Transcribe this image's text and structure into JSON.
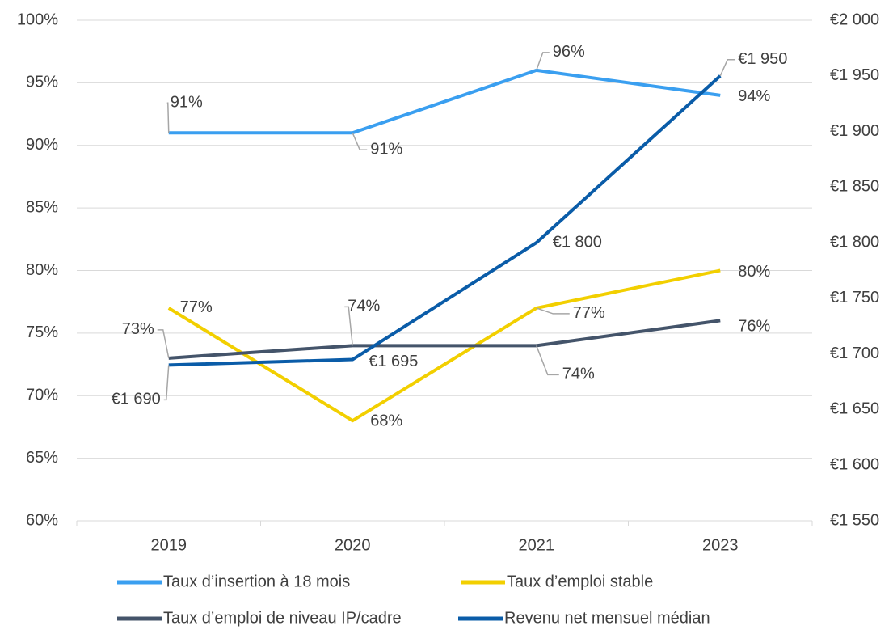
{
  "chart_data": {
    "type": "line",
    "categories": [
      "2019",
      "2020",
      "2021",
      "2023"
    ],
    "ylim": [
      60,
      100
    ],
    "yticks": [
      {
        "value": 60,
        "label": "60%"
      },
      {
        "value": 65,
        "label": "65%"
      },
      {
        "value": 70,
        "label": "70%"
      },
      {
        "value": 75,
        "label": "75%"
      },
      {
        "value": 80,
        "label": "80%"
      },
      {
        "value": 85,
        "label": "85%"
      },
      {
        "value": 90,
        "label": "90%"
      },
      {
        "value": 95,
        "label": "95%"
      },
      {
        "value": 100,
        "label": "100%"
      }
    ],
    "y2lim": [
      1550,
      2000
    ],
    "y2ticks": [
      {
        "value": 1550,
        "label": "€1 550"
      },
      {
        "value": 1600,
        "label": "€1 600"
      },
      {
        "value": 1650,
        "label": "€1 650"
      },
      {
        "value": 1700,
        "label": "€1 700"
      },
      {
        "value": 1750,
        "label": "€1 750"
      },
      {
        "value": 1800,
        "label": "€1 800"
      },
      {
        "value": 1850,
        "label": "€1 850"
      },
      {
        "value": 1900,
        "label": "€1 900"
      },
      {
        "value": 1950,
        "label": "€1 950"
      },
      {
        "value": 2000,
        "label": "€2 000"
      }
    ],
    "grid": true,
    "legend": "bottom",
    "series": [
      {
        "name": "Taux d’insertion à 18 mois",
        "color": "#3a9ff0",
        "values": [
          91,
          91,
          96,
          94
        ],
        "value_labels": [
          "91%",
          "91%",
          "96%",
          "94%"
        ]
      },
      {
        "name": "Taux d’emploi stable",
        "color": "#f2cf00",
        "values": [
          77,
          68,
          77,
          80
        ],
        "value_labels": [
          "77%",
          "68%",
          "77%",
          "80%"
        ]
      },
      {
        "name": "Taux d’emploi de niveau IP/cadre",
        "color": "#44546a",
        "values": [
          73,
          74,
          74,
          76
        ],
        "value_labels": [
          "73%",
          "74%",
          "74%",
          "76%"
        ]
      },
      {
        "name": "Revenu net mensuel médian",
        "color": "#0a5ca8",
        "axis": "y2",
        "values": [
          1690,
          1695,
          1800,
          1950
        ],
        "value_labels": [
          "€1 690",
          "€1 695",
          "€1 800",
          "€1 950"
        ]
      }
    ]
  }
}
